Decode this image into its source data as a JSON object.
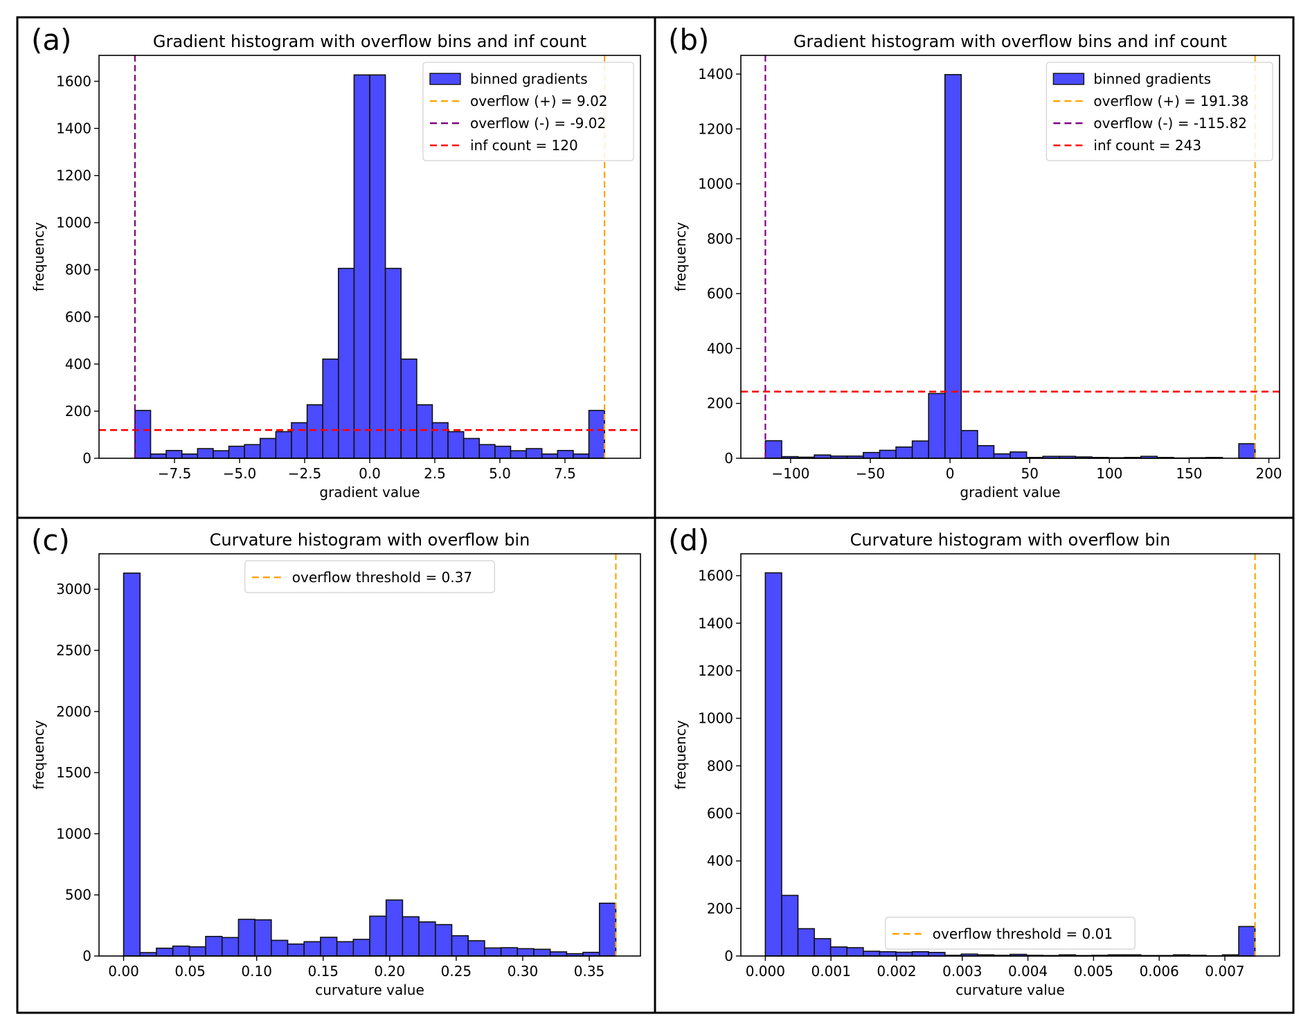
{
  "figure": {
    "panels": [
      "a",
      "b",
      "c",
      "d"
    ]
  },
  "chart_data": [
    {
      "panel_label": "(a)",
      "type": "bar",
      "title": "Gradient histogram with overflow bins and inf count",
      "xlabel": "gradient value",
      "ylabel": "frequency",
      "bin_range": [
        -9.02,
        9.02
      ],
      "bins": 30,
      "values": [
        203,
        18,
        33,
        18,
        41,
        32,
        51,
        58,
        84,
        113,
        151,
        227,
        421,
        806,
        1627,
        1627,
        806,
        421,
        227,
        151,
        113,
        84,
        58,
        51,
        32,
        41,
        18,
        33,
        18,
        203
      ],
      "xlim": [
        -10.4,
        10.4
      ],
      "ylim": [
        0,
        1710
      ],
      "xticks": [
        -7.5,
        -5.0,
        -2.5,
        0.0,
        2.5,
        5.0,
        7.5
      ],
      "xtick_labels": [
        "−7.5",
        "−5.0",
        "−2.5",
        "0.0",
        "2.5",
        "5.0",
        "7.5"
      ],
      "yticks": [
        0,
        200,
        400,
        600,
        800,
        1000,
        1200,
        1400,
        1600
      ],
      "ytick_labels": [
        "0",
        "200",
        "400",
        "600",
        "800",
        "1000",
        "1200",
        "1400",
        "1600"
      ],
      "vlines": [
        {
          "x": 9.02,
          "color": "#ffa500",
          "label": "overflow (+) = 9.02"
        },
        {
          "x": -9.02,
          "color": "#800080",
          "label": "overflow (-) = -9.02"
        }
      ],
      "hlines": [
        {
          "y": 120,
          "color": "#ff0000",
          "label": "inf count = 120"
        }
      ],
      "legend": {
        "position": "upper-right",
        "entries": [
          {
            "kind": "patch",
            "color": "#4b4bff",
            "label": "binned gradients"
          },
          {
            "kind": "dash",
            "color": "#ffa500",
            "label": "overflow (+) = 9.02"
          },
          {
            "kind": "dash",
            "color": "#800080",
            "label": "overflow (-) = -9.02"
          },
          {
            "kind": "dash",
            "color": "#ff0000",
            "label": "inf count = 120"
          }
        ]
      }
    },
    {
      "panel_label": "(b)",
      "type": "bar",
      "title": "Gradient histogram with overflow bins and inf count",
      "xlabel": "gradient value",
      "ylabel": "frequency",
      "bin_range": [
        -115.82,
        191.38
      ],
      "bins": 30,
      "values": [
        64,
        6,
        4,
        12,
        8,
        8,
        21,
        29,
        41,
        63,
        236,
        1398,
        101,
        46,
        16,
        23,
        3,
        7,
        7,
        5,
        3,
        2,
        3,
        7,
        3,
        1,
        2,
        3,
        0,
        53
      ],
      "xlim": [
        -131.2,
        206.7
      ],
      "ylim": [
        0,
        1468
      ],
      "xticks": [
        -100,
        -50,
        0,
        50,
        100,
        150,
        200
      ],
      "xtick_labels": [
        "−100",
        "−50",
        "0",
        "50",
        "100",
        "150",
        "200"
      ],
      "yticks": [
        0,
        200,
        400,
        600,
        800,
        1000,
        1200,
        1400
      ],
      "ytick_labels": [
        "0",
        "200",
        "400",
        "600",
        "800",
        "1000",
        "1200",
        "1400"
      ],
      "vlines": [
        {
          "x": 191.38,
          "color": "#ffa500",
          "label": "overflow (+) = 191.38"
        },
        {
          "x": -115.82,
          "color": "#800080",
          "label": "overflow (-) = -115.82"
        }
      ],
      "hlines": [
        {
          "y": 243,
          "color": "#ff0000",
          "label": "inf count = 243"
        }
      ],
      "legend": {
        "position": "upper-right",
        "entries": [
          {
            "kind": "patch",
            "color": "#4b4bff",
            "label": "binned gradients"
          },
          {
            "kind": "dash",
            "color": "#ffa500",
            "label": "overflow (+) = 191.38"
          },
          {
            "kind": "dash",
            "color": "#800080",
            "label": "overflow (-) = -115.82"
          },
          {
            "kind": "dash",
            "color": "#ff0000",
            "label": "inf count = 243"
          }
        ]
      }
    },
    {
      "panel_label": "(c)",
      "type": "bar",
      "title": "Curvature histogram with overflow bin",
      "xlabel": "curvature value",
      "ylabel": "frequency",
      "bin_range": [
        0,
        0.37
      ],
      "bins": 30,
      "values": [
        3132,
        28,
        64,
        81,
        75,
        160,
        151,
        300,
        296,
        128,
        98,
        117,
        153,
        117,
        136,
        326,
        458,
        321,
        279,
        257,
        166,
        125,
        66,
        68,
        60,
        55,
        34,
        19,
        30,
        432
      ],
      "xlim": [
        -0.0185,
        0.3885
      ],
      "ylim": [
        0,
        3290
      ],
      "xticks": [
        0.0,
        0.05,
        0.1,
        0.15,
        0.2,
        0.25,
        0.3,
        0.35
      ],
      "xtick_labels": [
        "0.00",
        "0.05",
        "0.10",
        "0.15",
        "0.20",
        "0.25",
        "0.30",
        "0.35"
      ],
      "yticks": [
        0,
        500,
        1000,
        1500,
        2000,
        2500,
        3000
      ],
      "ytick_labels": [
        "0",
        "500",
        "1000",
        "1500",
        "2000",
        "2500",
        "3000"
      ],
      "vlines": [
        {
          "x": 0.37,
          "color": "#ffa500",
          "label": "overflow threshold = 0.37"
        }
      ],
      "hlines": [],
      "legend": {
        "position": "upper-center",
        "entries": [
          {
            "kind": "dash",
            "color": "#ffa500",
            "label": "overflow threshold = 0.37"
          }
        ]
      }
    },
    {
      "panel_label": "(d)",
      "type": "bar",
      "title": "Curvature histogram with overflow bin",
      "xlabel": "curvature value",
      "ylabel": "frequency",
      "bin_range": [
        0,
        0.00746
      ],
      "bins": 30,
      "values": [
        1612,
        255,
        115,
        73,
        38,
        35,
        20,
        18,
        16,
        18,
        15,
        3,
        8,
        5,
        3,
        7,
        3,
        2,
        5,
        2,
        3,
        5,
        5,
        2,
        2,
        5,
        3,
        1,
        5,
        124
      ],
      "xlim": [
        -0.000373,
        0.007833
      ],
      "ylim": [
        0,
        1692
      ],
      "xticks": [
        0.0,
        0.001,
        0.002,
        0.003,
        0.004,
        0.005,
        0.006,
        0.007
      ],
      "xtick_labels": [
        "0.000",
        "0.001",
        "0.002",
        "0.003",
        "0.004",
        "0.005",
        "0.006",
        "0.007"
      ],
      "yticks": [
        0,
        200,
        400,
        600,
        800,
        1000,
        1200,
        1400,
        1600
      ],
      "ytick_labels": [
        "0",
        "200",
        "400",
        "600",
        "800",
        "1000",
        "1200",
        "1400",
        "1600"
      ],
      "vlines": [
        {
          "x": 0.00746,
          "color": "#ffa500",
          "label": "overflow threshold = 0.01"
        }
      ],
      "hlines": [],
      "legend": {
        "position": "lower-center",
        "entries": [
          {
            "kind": "dash",
            "color": "#ffa500",
            "label": "overflow threshold = 0.01"
          }
        ]
      }
    }
  ]
}
